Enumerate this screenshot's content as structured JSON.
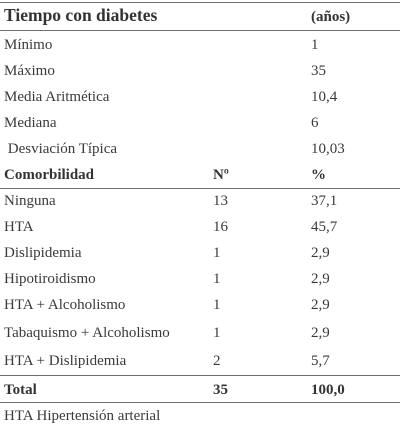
{
  "header": {
    "title": "Tiempo con diabetes",
    "unit": "(años)"
  },
  "stats": [
    {
      "label": "Mínimo",
      "value": "1"
    },
    {
      "label": "Máximo",
      "value": "35"
    },
    {
      "label": "Media Aritmética",
      "value": "10,4"
    },
    {
      "label": "Mediana",
      "value": "6"
    },
    {
      "label": " Desviación Típica",
      "value": "10,03"
    }
  ],
  "comorbidity_header": {
    "label": "Comorbilidad",
    "count": "Nº",
    "percent": "%"
  },
  "comorbidities": [
    {
      "label": "Ninguna",
      "count": "13",
      "percent": "37,1"
    },
    {
      "label": "HTA",
      "count": "16",
      "percent": "45,7"
    },
    {
      "label": "Dislipidemia",
      "count": "1",
      "percent": "2,9"
    },
    {
      "label": "Hipotiroidismo",
      "count": "1",
      "percent": "2,9"
    },
    {
      "label": "HTA + Alcoholismo",
      "count": "1",
      "percent": "2,9"
    },
    {
      "label": "Tabaquismo + Alcoholismo",
      "count": "1",
      "percent": "2,9"
    },
    {
      "label": "HTA + Dislipidemia",
      "count": "2",
      "percent": "5,7"
    }
  ],
  "total": {
    "label": "Total",
    "count": "35",
    "percent": "100,0"
  },
  "footnote": "HTA Hipertensión arterial"
}
